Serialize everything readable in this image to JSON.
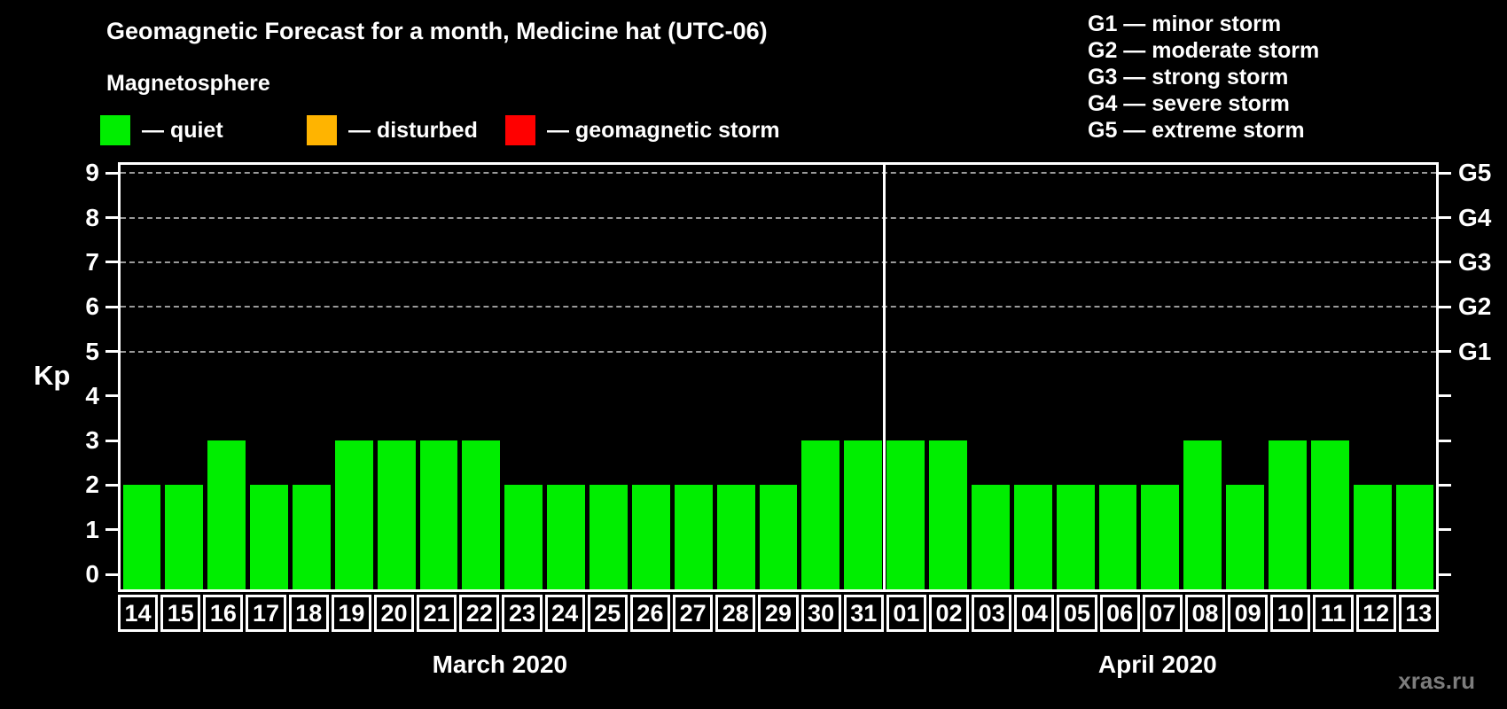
{
  "header": {
    "title": "Geomagnetic Forecast for a month, Medicine hat (UTC-06)",
    "subtitle": "Magnetosphere"
  },
  "legend": {
    "items": [
      {
        "key": "quiet",
        "label": "— quiet",
        "color": "#00ee00"
      },
      {
        "key": "disturbed",
        "label": "— disturbed",
        "color": "#ffb400"
      },
      {
        "key": "storm",
        "label": "— geomagnetic storm",
        "color": "#ff0000"
      }
    ]
  },
  "g_legend": [
    "G1 — minor storm",
    "G2 — moderate storm",
    "G3 — strong storm",
    "G4 — severe storm",
    "G5 — extreme storm"
  ],
  "watermark": "xras.ru",
  "chart_data": {
    "type": "bar",
    "title": "Geomagnetic Forecast for a month, Medicine hat (UTC-06)",
    "ylabel": "Kp",
    "ylim": [
      0,
      9.5
    ],
    "yticks": [
      0,
      1,
      2,
      3,
      4,
      5,
      6,
      7,
      8,
      9
    ],
    "grid_levels": [
      5,
      6,
      7,
      8,
      9
    ],
    "right_axis": [
      {
        "kp": 5,
        "label": "G1"
      },
      {
        "kp": 6,
        "label": "G2"
      },
      {
        "kp": 7,
        "label": "G3"
      },
      {
        "kp": 8,
        "label": "G4"
      },
      {
        "kp": 9,
        "label": "G5"
      }
    ],
    "bar_color": "#00ee00",
    "legend_position": "top",
    "grid": true,
    "groups": [
      {
        "month": "March 2020",
        "days": [
          "14",
          "15",
          "16",
          "17",
          "18",
          "19",
          "20",
          "21",
          "22",
          "23",
          "24",
          "25",
          "26",
          "27",
          "28",
          "29",
          "30",
          "31"
        ],
        "values": [
          2,
          2,
          3,
          2,
          2,
          3,
          3,
          3,
          3,
          2,
          2,
          2,
          2,
          2,
          2,
          2,
          3,
          3
        ]
      },
      {
        "month": "April 2020",
        "days": [
          "01",
          "02",
          "03",
          "04",
          "05",
          "06",
          "07",
          "08",
          "09",
          "10",
          "11",
          "12",
          "13"
        ],
        "values": [
          3,
          3,
          2,
          2,
          2,
          2,
          2,
          3,
          2,
          3,
          3,
          2,
          2
        ]
      }
    ]
  }
}
